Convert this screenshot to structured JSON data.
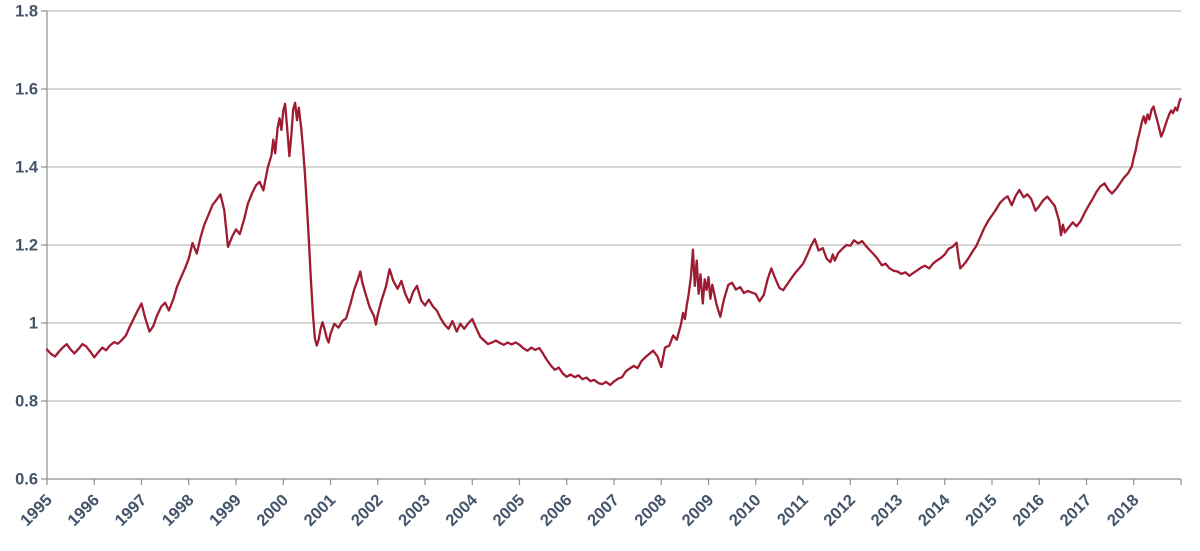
{
  "chart_data": {
    "type": "line",
    "title": "",
    "xlabel": "",
    "ylabel": "",
    "legend": "none",
    "grid": "horizontal",
    "background": "#FFFFFF",
    "line_color": "#9E1B32",
    "axis_label_color": "#44546A",
    "gridline_color": "#BDBDBD",
    "axis_line_color": "#8E8E8E",
    "xlim": [
      1995,
      2019
    ],
    "ylim": [
      0.6,
      1.8
    ],
    "x_ticks": [
      1995,
      1996,
      1997,
      1998,
      1999,
      2000,
      2001,
      2002,
      2003,
      2004,
      2005,
      2006,
      2007,
      2008,
      2009,
      2010,
      2011,
      2012,
      2013,
      2014,
      2015,
      2016,
      2017,
      2018
    ],
    "y_ticks": [
      1.8,
      1.6,
      1.4,
      1.2,
      1,
      0.8,
      0.6
    ],
    "y_tick_labels": [
      "1.8",
      "1.6",
      "1.4",
      "1.2",
      "1",
      "0.8",
      "0.6"
    ],
    "points": [
      [
        1995.0,
        0.932
      ],
      [
        1995.08,
        0.921
      ],
      [
        1995.17,
        0.914
      ],
      [
        1995.25,
        0.926
      ],
      [
        1995.33,
        0.937
      ],
      [
        1995.42,
        0.946
      ],
      [
        1995.5,
        0.932
      ],
      [
        1995.58,
        0.922
      ],
      [
        1995.67,
        0.934
      ],
      [
        1995.75,
        0.946
      ],
      [
        1995.83,
        0.94
      ],
      [
        1995.92,
        0.926
      ],
      [
        1996.0,
        0.912
      ],
      [
        1996.08,
        0.924
      ],
      [
        1996.17,
        0.937
      ],
      [
        1996.25,
        0.93
      ],
      [
        1996.33,
        0.942
      ],
      [
        1996.42,
        0.951
      ],
      [
        1996.5,
        0.947
      ],
      [
        1996.58,
        0.956
      ],
      [
        1996.67,
        0.968
      ],
      [
        1996.75,
        0.99
      ],
      [
        1996.83,
        1.01
      ],
      [
        1996.92,
        1.032
      ],
      [
        1997.0,
        1.05
      ],
      [
        1997.08,
        1.012
      ],
      [
        1997.17,
        0.978
      ],
      [
        1997.25,
        0.992
      ],
      [
        1997.33,
        1.02
      ],
      [
        1997.42,
        1.042
      ],
      [
        1997.5,
        1.052
      ],
      [
        1997.58,
        1.032
      ],
      [
        1997.67,
        1.06
      ],
      [
        1997.75,
        1.092
      ],
      [
        1997.83,
        1.115
      ],
      [
        1997.92,
        1.14
      ],
      [
        1998.0,
        1.165
      ],
      [
        1998.08,
        1.205
      ],
      [
        1998.17,
        1.178
      ],
      [
        1998.25,
        1.22
      ],
      [
        1998.33,
        1.252
      ],
      [
        1998.42,
        1.278
      ],
      [
        1998.5,
        1.302
      ],
      [
        1998.58,
        1.315
      ],
      [
        1998.67,
        1.33
      ],
      [
        1998.75,
        1.29
      ],
      [
        1998.83,
        1.195
      ],
      [
        1998.92,
        1.222
      ],
      [
        1999.0,
        1.24
      ],
      [
        1999.08,
        1.228
      ],
      [
        1999.17,
        1.265
      ],
      [
        1999.25,
        1.305
      ],
      [
        1999.33,
        1.33
      ],
      [
        1999.42,
        1.352
      ],
      [
        1999.5,
        1.362
      ],
      [
        1999.58,
        1.34
      ],
      [
        1999.67,
        1.398
      ],
      [
        1999.75,
        1.43
      ],
      [
        1999.79,
        1.47
      ],
      [
        1999.83,
        1.435
      ],
      [
        1999.88,
        1.5
      ],
      [
        1999.92,
        1.525
      ],
      [
        1999.96,
        1.495
      ],
      [
        2000.0,
        1.545
      ],
      [
        2000.04,
        1.562
      ],
      [
        2000.08,
        1.505
      ],
      [
        2000.13,
        1.428
      ],
      [
        2000.17,
        1.48
      ],
      [
        2000.21,
        1.548
      ],
      [
        2000.25,
        1.565
      ],
      [
        2000.29,
        1.52
      ],
      [
        2000.33,
        1.552
      ],
      [
        2000.38,
        1.5
      ],
      [
        2000.42,
        1.445
      ],
      [
        2000.46,
        1.38
      ],
      [
        2000.5,
        1.3
      ],
      [
        2000.54,
        1.215
      ],
      [
        2000.58,
        1.12
      ],
      [
        2000.63,
        1.02
      ],
      [
        2000.67,
        0.96
      ],
      [
        2000.71,
        0.942
      ],
      [
        2000.75,
        0.958
      ],
      [
        2000.79,
        0.985
      ],
      [
        2000.83,
        1.002
      ],
      [
        2000.88,
        0.982
      ],
      [
        2000.92,
        0.962
      ],
      [
        2000.96,
        0.95
      ],
      [
        2001.0,
        0.972
      ],
      [
        2001.08,
        0.998
      ],
      [
        2001.17,
        0.988
      ],
      [
        2001.25,
        1.005
      ],
      [
        2001.33,
        1.012
      ],
      [
        2001.42,
        1.048
      ],
      [
        2001.5,
        1.085
      ],
      [
        2001.58,
        1.112
      ],
      [
        2001.63,
        1.132
      ],
      [
        2001.67,
        1.105
      ],
      [
        2001.75,
        1.072
      ],
      [
        2001.83,
        1.04
      ],
      [
        2001.92,
        1.018
      ],
      [
        2001.96,
        0.996
      ],
      [
        2002.0,
        1.022
      ],
      [
        2002.08,
        1.058
      ],
      [
        2002.17,
        1.092
      ],
      [
        2002.25,
        1.138
      ],
      [
        2002.33,
        1.108
      ],
      [
        2002.42,
        1.088
      ],
      [
        2002.5,
        1.108
      ],
      [
        2002.58,
        1.075
      ],
      [
        2002.67,
        1.052
      ],
      [
        2002.75,
        1.08
      ],
      [
        2002.83,
        1.095
      ],
      [
        2002.92,
        1.058
      ],
      [
        2003.0,
        1.045
      ],
      [
        2003.08,
        1.06
      ],
      [
        2003.17,
        1.042
      ],
      [
        2003.25,
        1.032
      ],
      [
        2003.33,
        1.012
      ],
      [
        2003.42,
        0.995
      ],
      [
        2003.5,
        0.985
      ],
      [
        2003.58,
        1.005
      ],
      [
        2003.67,
        0.978
      ],
      [
        2003.75,
        0.998
      ],
      [
        2003.83,
        0.985
      ],
      [
        2003.92,
        1.0
      ],
      [
        2004.0,
        1.01
      ],
      [
        2004.08,
        0.988
      ],
      [
        2004.17,
        0.964
      ],
      [
        2004.25,
        0.955
      ],
      [
        2004.33,
        0.946
      ],
      [
        2004.42,
        0.95
      ],
      [
        2004.5,
        0.955
      ],
      [
        2004.58,
        0.949
      ],
      [
        2004.67,
        0.944
      ],
      [
        2004.75,
        0.95
      ],
      [
        2004.83,
        0.945
      ],
      [
        2004.92,
        0.95
      ],
      [
        2005.0,
        0.944
      ],
      [
        2005.08,
        0.935
      ],
      [
        2005.17,
        0.929
      ],
      [
        2005.25,
        0.937
      ],
      [
        2005.33,
        0.931
      ],
      [
        2005.42,
        0.936
      ],
      [
        2005.5,
        0.921
      ],
      [
        2005.58,
        0.905
      ],
      [
        2005.67,
        0.89
      ],
      [
        2005.75,
        0.88
      ],
      [
        2005.83,
        0.886
      ],
      [
        2005.92,
        0.87
      ],
      [
        2006.0,
        0.862
      ],
      [
        2006.08,
        0.868
      ],
      [
        2006.17,
        0.861
      ],
      [
        2006.25,
        0.866
      ],
      [
        2006.33,
        0.856
      ],
      [
        2006.42,
        0.86
      ],
      [
        2006.5,
        0.851
      ],
      [
        2006.58,
        0.854
      ],
      [
        2006.67,
        0.846
      ],
      [
        2006.75,
        0.843
      ],
      [
        2006.83,
        0.849
      ],
      [
        2006.92,
        0.841
      ],
      [
        2007.0,
        0.85
      ],
      [
        2007.08,
        0.857
      ],
      [
        2007.17,
        0.861
      ],
      [
        2007.25,
        0.876
      ],
      [
        2007.33,
        0.883
      ],
      [
        2007.42,
        0.89
      ],
      [
        2007.5,
        0.884
      ],
      [
        2007.58,
        0.902
      ],
      [
        2007.67,
        0.913
      ],
      [
        2007.75,
        0.921
      ],
      [
        2007.83,
        0.929
      ],
      [
        2007.92,
        0.914
      ],
      [
        2008.0,
        0.887
      ],
      [
        2008.04,
        0.912
      ],
      [
        2008.08,
        0.937
      ],
      [
        2008.17,
        0.942
      ],
      [
        2008.25,
        0.968
      ],
      [
        2008.33,
        0.957
      ],
      [
        2008.42,
        0.998
      ],
      [
        2008.46,
        1.026
      ],
      [
        2008.5,
        1.01
      ],
      [
        2008.54,
        1.046
      ],
      [
        2008.58,
        1.075
      ],
      [
        2008.63,
        1.12
      ],
      [
        2008.67,
        1.188
      ],
      [
        2008.71,
        1.095
      ],
      [
        2008.75,
        1.16
      ],
      [
        2008.79,
        1.075
      ],
      [
        2008.83,
        1.125
      ],
      [
        2008.88,
        1.05
      ],
      [
        2008.92,
        1.112
      ],
      [
        2008.96,
        1.085
      ],
      [
        2009.0,
        1.118
      ],
      [
        2009.04,
        1.062
      ],
      [
        2009.08,
        1.098
      ],
      [
        2009.17,
        1.048
      ],
      [
        2009.25,
        1.016
      ],
      [
        2009.33,
        1.062
      ],
      [
        2009.42,
        1.098
      ],
      [
        2009.5,
        1.103
      ],
      [
        2009.58,
        1.086
      ],
      [
        2009.67,
        1.092
      ],
      [
        2009.75,
        1.077
      ],
      [
        2009.83,
        1.082
      ],
      [
        2009.92,
        1.078
      ],
      [
        2010.0,
        1.074
      ],
      [
        2010.08,
        1.056
      ],
      [
        2010.17,
        1.072
      ],
      [
        2010.25,
        1.112
      ],
      [
        2010.33,
        1.14
      ],
      [
        2010.42,
        1.112
      ],
      [
        2010.5,
        1.09
      ],
      [
        2010.58,
        1.084
      ],
      [
        2010.67,
        1.1
      ],
      [
        2010.75,
        1.114
      ],
      [
        2010.83,
        1.128
      ],
      [
        2010.92,
        1.14
      ],
      [
        2011.0,
        1.152
      ],
      [
        2011.08,
        1.172
      ],
      [
        2011.17,
        1.198
      ],
      [
        2011.25,
        1.215
      ],
      [
        2011.33,
        1.186
      ],
      [
        2011.42,
        1.192
      ],
      [
        2011.5,
        1.165
      ],
      [
        2011.58,
        1.156
      ],
      [
        2011.63,
        1.176
      ],
      [
        2011.67,
        1.16
      ],
      [
        2011.75,
        1.18
      ],
      [
        2011.83,
        1.19
      ],
      [
        2011.92,
        1.2
      ],
      [
        2012.0,
        1.198
      ],
      [
        2012.08,
        1.212
      ],
      [
        2012.17,
        1.204
      ],
      [
        2012.25,
        1.21
      ],
      [
        2012.33,
        1.198
      ],
      [
        2012.42,
        1.186
      ],
      [
        2012.5,
        1.176
      ],
      [
        2012.58,
        1.164
      ],
      [
        2012.67,
        1.148
      ],
      [
        2012.75,
        1.152
      ],
      [
        2012.83,
        1.14
      ],
      [
        2012.92,
        1.134
      ],
      [
        2013.0,
        1.132
      ],
      [
        2013.08,
        1.126
      ],
      [
        2013.17,
        1.13
      ],
      [
        2013.25,
        1.121
      ],
      [
        2013.33,
        1.128
      ],
      [
        2013.42,
        1.135
      ],
      [
        2013.5,
        1.142
      ],
      [
        2013.58,
        1.147
      ],
      [
        2013.67,
        1.14
      ],
      [
        2013.75,
        1.152
      ],
      [
        2013.83,
        1.16
      ],
      [
        2013.92,
        1.167
      ],
      [
        2014.0,
        1.176
      ],
      [
        2014.08,
        1.19
      ],
      [
        2014.17,
        1.196
      ],
      [
        2014.25,
        1.206
      ],
      [
        2014.29,
        1.168
      ],
      [
        2014.33,
        1.14
      ],
      [
        2014.42,
        1.152
      ],
      [
        2014.5,
        1.166
      ],
      [
        2014.58,
        1.182
      ],
      [
        2014.67,
        1.198
      ],
      [
        2014.75,
        1.22
      ],
      [
        2014.83,
        1.242
      ],
      [
        2014.92,
        1.262
      ],
      [
        2015.0,
        1.276
      ],
      [
        2015.08,
        1.29
      ],
      [
        2015.17,
        1.308
      ],
      [
        2015.25,
        1.318
      ],
      [
        2015.33,
        1.325
      ],
      [
        2015.42,
        1.302
      ],
      [
        2015.5,
        1.326
      ],
      [
        2015.58,
        1.341
      ],
      [
        2015.67,
        1.322
      ],
      [
        2015.75,
        1.33
      ],
      [
        2015.83,
        1.318
      ],
      [
        2015.92,
        1.288
      ],
      [
        2016.0,
        1.3
      ],
      [
        2016.08,
        1.314
      ],
      [
        2016.17,
        1.324
      ],
      [
        2016.25,
        1.312
      ],
      [
        2016.33,
        1.3
      ],
      [
        2016.42,
        1.262
      ],
      [
        2016.46,
        1.225
      ],
      [
        2016.5,
        1.252
      ],
      [
        2016.54,
        1.232
      ],
      [
        2016.63,
        1.246
      ],
      [
        2016.71,
        1.258
      ],
      [
        2016.79,
        1.248
      ],
      [
        2016.88,
        1.262
      ],
      [
        2016.96,
        1.282
      ],
      [
        2017.04,
        1.3
      ],
      [
        2017.13,
        1.318
      ],
      [
        2017.21,
        1.336
      ],
      [
        2017.29,
        1.35
      ],
      [
        2017.38,
        1.358
      ],
      [
        2017.46,
        1.342
      ],
      [
        2017.54,
        1.332
      ],
      [
        2017.63,
        1.344
      ],
      [
        2017.71,
        1.358
      ],
      [
        2017.79,
        1.372
      ],
      [
        2017.88,
        1.384
      ],
      [
        2017.96,
        1.402
      ],
      [
        2018.0,
        1.425
      ],
      [
        2018.04,
        1.442
      ],
      [
        2018.08,
        1.468
      ],
      [
        2018.13,
        1.492
      ],
      [
        2018.17,
        1.515
      ],
      [
        2018.21,
        1.53
      ],
      [
        2018.25,
        1.512
      ],
      [
        2018.29,
        1.535
      ],
      [
        2018.33,
        1.522
      ],
      [
        2018.38,
        1.548
      ],
      [
        2018.42,
        1.555
      ],
      [
        2018.46,
        1.535
      ],
      [
        2018.5,
        1.518
      ],
      [
        2018.54,
        1.498
      ],
      [
        2018.58,
        1.478
      ],
      [
        2018.63,
        1.492
      ],
      [
        2018.67,
        1.508
      ],
      [
        2018.71,
        1.522
      ],
      [
        2018.75,
        1.535
      ],
      [
        2018.79,
        1.545
      ],
      [
        2018.83,
        1.538
      ],
      [
        2018.88,
        1.552
      ],
      [
        2018.92,
        1.545
      ],
      [
        2018.96,
        1.565
      ],
      [
        2018.99,
        1.575
      ]
    ]
  }
}
